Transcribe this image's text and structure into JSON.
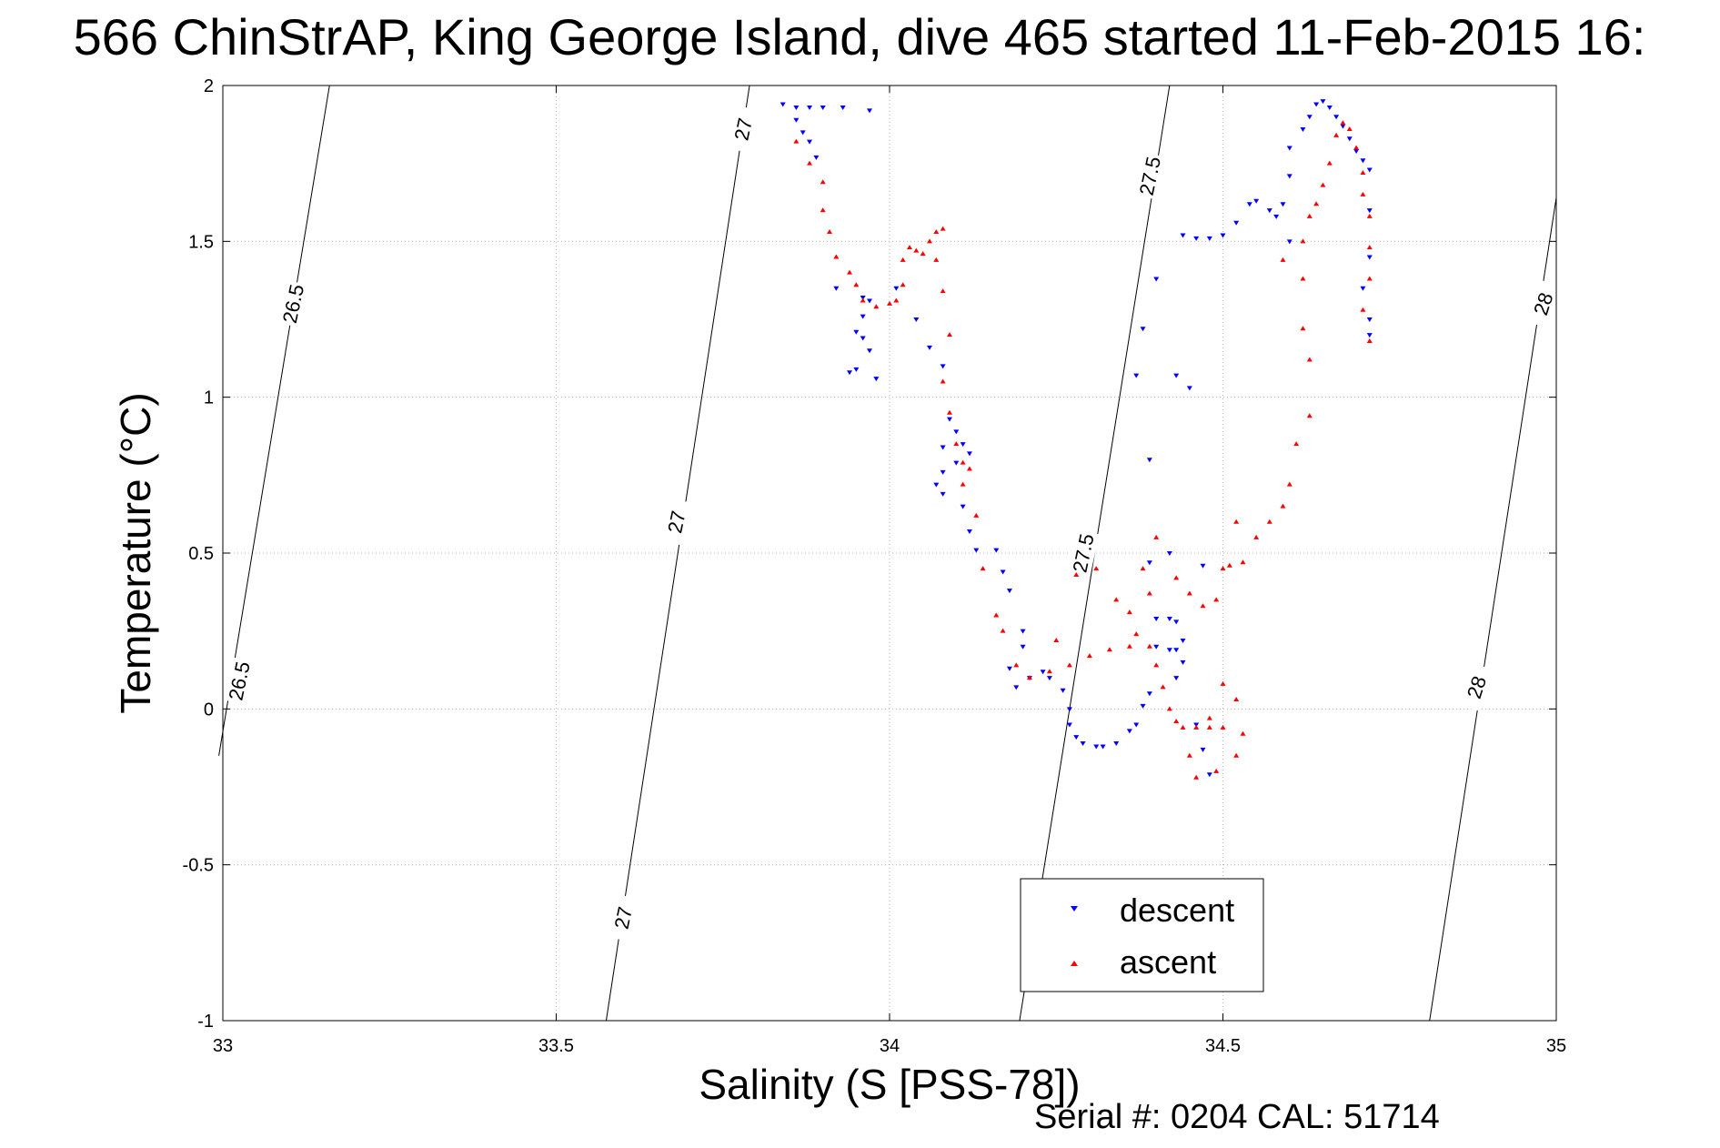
{
  "chart_data": {
    "type": "scatter",
    "title": "566 ChinStrAP, King George Island, dive 465 started 11-Feb-2015 16:",
    "xlabel": "Salinity (S [PSS-78])",
    "ylabel": "Temperature (°C)",
    "xlim": [
      33,
      35
    ],
    "ylim": [
      -1,
      2
    ],
    "x_ticks": [
      33,
      33.5,
      34,
      34.5,
      35
    ],
    "y_ticks": [
      -1,
      -0.5,
      0,
      0.5,
      1,
      1.5,
      2
    ],
    "x_tick_labels": [
      "33",
      "33.5",
      "34",
      "34.5",
      "35"
    ],
    "y_tick_labels": [
      "-1",
      "-0.5",
      "0",
      "0.5",
      "1",
      "1.5",
      "2"
    ],
    "grid": true,
    "legend_position": "bottom-center",
    "footer": "Serial #: 0204  CAL: 51714",
    "isopycnals": [
      {
        "label": "26.5",
        "points": [
          [
            33.16,
            2.0
          ],
          [
            32.994,
            -0.15
          ]
        ]
      },
      {
        "label": "27",
        "points": [
          [
            33.79,
            2.0
          ],
          [
            33.575,
            -1.0
          ]
        ]
      },
      {
        "label": "27.5",
        "points": [
          [
            34.42,
            2.0
          ],
          [
            34.195,
            -1.0
          ]
        ]
      },
      {
        "label": "28",
        "points": [
          [
            35.0,
            1.64
          ],
          [
            34.81,
            -1.0
          ]
        ]
      }
    ],
    "isopycnal_labels": [
      {
        "text": "26.5",
        "x": 33.105,
        "y": 1.3,
        "angle": -78
      },
      {
        "text": "26.5",
        "x": 33.024,
        "y": 0.09,
        "angle": -78
      },
      {
        "text": "27",
        "x": 33.78,
        "y": 1.86,
        "angle": -78
      },
      {
        "text": "27",
        "x": 33.68,
        "y": 0.6,
        "angle": -78
      },
      {
        "text": "27",
        "x": 33.6,
        "y": -0.67,
        "angle": -78
      },
      {
        "text": "27.5",
        "x": 34.39,
        "y": 1.71,
        "angle": -78
      },
      {
        "text": "27.5",
        "x": 34.29,
        "y": 0.5,
        "angle": -78
      },
      {
        "text": "28",
        "x": 34.98,
        "y": 1.3,
        "angle": -72
      },
      {
        "text": "28",
        "x": 34.88,
        "y": 0.07,
        "angle": -72
      }
    ],
    "series": [
      {
        "name": "descent",
        "color": "#0000ff",
        "marker": "triangle-down",
        "points": [
          [
            33.84,
            1.94
          ],
          [
            33.86,
            1.93
          ],
          [
            33.88,
            1.93
          ],
          [
            33.9,
            1.93
          ],
          [
            33.93,
            1.93
          ],
          [
            33.97,
            1.92
          ],
          [
            33.86,
            1.89
          ],
          [
            33.87,
            1.85
          ],
          [
            33.88,
            1.82
          ],
          [
            33.89,
            1.77
          ],
          [
            33.96,
            1.32
          ],
          [
            33.97,
            1.31
          ],
          [
            33.96,
            1.26
          ],
          [
            33.95,
            1.21
          ],
          [
            33.96,
            1.19
          ],
          [
            33.97,
            1.15
          ],
          [
            33.94,
            1.08
          ],
          [
            33.95,
            1.09
          ],
          [
            33.98,
            1.06
          ],
          [
            33.92,
            1.35
          ],
          [
            34.01,
            1.35
          ],
          [
            34.04,
            1.25
          ],
          [
            34.06,
            1.16
          ],
          [
            34.08,
            1.1
          ],
          [
            34.09,
            0.93
          ],
          [
            34.1,
            0.89
          ],
          [
            34.08,
            0.84
          ],
          [
            34.11,
            0.85
          ],
          [
            34.12,
            0.82
          ],
          [
            34.1,
            0.79
          ],
          [
            34.08,
            0.76
          ],
          [
            34.07,
            0.72
          ],
          [
            34.08,
            0.69
          ],
          [
            34.11,
            0.65
          ],
          [
            34.12,
            0.57
          ],
          [
            34.13,
            0.51
          ],
          [
            34.16,
            0.51
          ],
          [
            34.17,
            0.44
          ],
          [
            34.18,
            0.38
          ],
          [
            34.2,
            0.25
          ],
          [
            34.2,
            0.2
          ],
          [
            34.18,
            0.13
          ],
          [
            34.19,
            0.07
          ],
          [
            34.21,
            0.1
          ],
          [
            34.23,
            0.12
          ],
          [
            34.24,
            0.1
          ],
          [
            34.26,
            0.06
          ],
          [
            34.27,
            0.0
          ],
          [
            34.27,
            -0.05
          ],
          [
            34.28,
            -0.09
          ],
          [
            34.29,
            -0.11
          ],
          [
            34.31,
            -0.12
          ],
          [
            34.32,
            -0.12
          ],
          [
            34.34,
            -0.11
          ],
          [
            34.36,
            -0.07
          ],
          [
            34.37,
            -0.05
          ],
          [
            34.38,
            0.01
          ],
          [
            34.39,
            0.05
          ],
          [
            34.4,
            0.2
          ],
          [
            34.4,
            0.29
          ],
          [
            34.42,
            0.29
          ],
          [
            34.43,
            0.28
          ],
          [
            34.44,
            0.22
          ],
          [
            34.43,
            0.19
          ],
          [
            34.42,
            0.19
          ],
          [
            34.44,
            0.15
          ],
          [
            34.43,
            0.1
          ],
          [
            34.46,
            -0.05
          ],
          [
            34.47,
            -0.13
          ],
          [
            34.48,
            -0.21
          ],
          [
            34.42,
            0.5
          ],
          [
            34.47,
            0.46
          ],
          [
            34.39,
            0.47
          ],
          [
            34.37,
            1.07
          ],
          [
            34.43,
            1.07
          ],
          [
            34.45,
            1.03
          ],
          [
            34.39,
            0.8
          ],
          [
            34.38,
            1.22
          ],
          [
            34.4,
            1.38
          ],
          [
            34.44,
            1.52
          ],
          [
            34.46,
            1.51
          ],
          [
            34.48,
            1.51
          ],
          [
            34.5,
            1.52
          ],
          [
            34.52,
            1.56
          ],
          [
            34.54,
            1.62
          ],
          [
            34.55,
            1.63
          ],
          [
            34.57,
            1.6
          ],
          [
            34.58,
            1.58
          ],
          [
            34.6,
            1.5
          ],
          [
            34.59,
            1.62
          ],
          [
            34.6,
            1.71
          ],
          [
            34.6,
            1.8
          ],
          [
            34.62,
            1.86
          ],
          [
            34.63,
            1.9
          ],
          [
            34.64,
            1.94
          ],
          [
            34.65,
            1.95
          ],
          [
            34.66,
            1.93
          ],
          [
            34.67,
            1.9
          ],
          [
            34.68,
            1.87
          ],
          [
            34.69,
            1.83
          ],
          [
            34.7,
            1.79
          ],
          [
            34.71,
            1.76
          ],
          [
            34.72,
            1.73
          ],
          [
            34.72,
            1.6
          ],
          [
            34.72,
            1.45
          ],
          [
            34.71,
            1.35
          ],
          [
            34.72,
            1.25
          ],
          [
            34.72,
            1.2
          ]
        ]
      },
      {
        "name": "ascent",
        "color": "#ff0000",
        "marker": "triangle-up",
        "points": [
          [
            33.86,
            1.82
          ],
          [
            33.88,
            1.75
          ],
          [
            33.9,
            1.69
          ],
          [
            33.9,
            1.6
          ],
          [
            33.91,
            1.53
          ],
          [
            33.92,
            1.45
          ],
          [
            33.94,
            1.4
          ],
          [
            33.95,
            1.36
          ],
          [
            33.96,
            1.31
          ],
          [
            33.98,
            1.29
          ],
          [
            34.0,
            1.3
          ],
          [
            34.01,
            1.31
          ],
          [
            34.02,
            1.36
          ],
          [
            34.02,
            1.44
          ],
          [
            34.03,
            1.48
          ],
          [
            34.04,
            1.47
          ],
          [
            34.05,
            1.46
          ],
          [
            34.06,
            1.5
          ],
          [
            34.07,
            1.53
          ],
          [
            34.08,
            1.54
          ],
          [
            34.07,
            1.44
          ],
          [
            34.08,
            1.34
          ],
          [
            34.09,
            1.2
          ],
          [
            34.08,
            1.05
          ],
          [
            34.09,
            0.95
          ],
          [
            34.1,
            0.85
          ],
          [
            34.11,
            0.79
          ],
          [
            34.12,
            0.77
          ],
          [
            34.11,
            0.72
          ],
          [
            34.13,
            0.62
          ],
          [
            34.14,
            0.45
          ],
          [
            34.16,
            0.3
          ],
          [
            34.17,
            0.25
          ],
          [
            34.19,
            0.14
          ],
          [
            34.21,
            0.1
          ],
          [
            34.24,
            0.12
          ],
          [
            34.27,
            0.14
          ],
          [
            34.3,
            0.17
          ],
          [
            34.33,
            0.19
          ],
          [
            34.36,
            0.2
          ],
          [
            34.39,
            0.2
          ],
          [
            34.4,
            0.14
          ],
          [
            34.41,
            0.07
          ],
          [
            34.42,
            0.0
          ],
          [
            34.43,
            -0.04
          ],
          [
            34.44,
            -0.06
          ],
          [
            34.46,
            -0.06
          ],
          [
            34.48,
            -0.06
          ],
          [
            34.5,
            -0.06
          ],
          [
            34.49,
            -0.2
          ],
          [
            34.46,
            -0.22
          ],
          [
            34.52,
            -0.15
          ],
          [
            34.34,
            0.35
          ],
          [
            34.36,
            0.31
          ],
          [
            34.38,
            0.45
          ],
          [
            34.39,
            0.37
          ],
          [
            34.37,
            0.24
          ],
          [
            34.4,
            0.55
          ],
          [
            34.43,
            0.42
          ],
          [
            34.45,
            0.37
          ],
          [
            34.47,
            0.33
          ],
          [
            34.49,
            0.35
          ],
          [
            34.5,
            0.45
          ],
          [
            34.51,
            0.46
          ],
          [
            34.53,
            0.47
          ],
          [
            34.52,
            0.6
          ],
          [
            34.55,
            0.55
          ],
          [
            34.57,
            0.6
          ],
          [
            34.59,
            0.65
          ],
          [
            34.6,
            0.72
          ],
          [
            34.61,
            0.85
          ],
          [
            34.63,
            0.94
          ],
          [
            34.63,
            1.12
          ],
          [
            34.62,
            1.22
          ],
          [
            34.62,
            1.38
          ],
          [
            34.59,
            1.44
          ],
          [
            34.62,
            1.5
          ],
          [
            34.63,
            1.58
          ],
          [
            34.64,
            1.62
          ],
          [
            34.65,
            1.68
          ],
          [
            34.66,
            1.75
          ],
          [
            34.67,
            1.84
          ],
          [
            34.68,
            1.88
          ],
          [
            34.69,
            1.86
          ],
          [
            34.7,
            1.8
          ],
          [
            34.71,
            1.72
          ],
          [
            34.71,
            1.65
          ],
          [
            34.72,
            1.58
          ],
          [
            34.72,
            1.48
          ],
          [
            34.72,
            1.38
          ],
          [
            34.71,
            1.28
          ],
          [
            34.72,
            1.18
          ],
          [
            34.5,
            0.08
          ],
          [
            34.52,
            0.03
          ],
          [
            34.53,
            -0.08
          ],
          [
            34.28,
            0.43
          ],
          [
            34.31,
            0.45
          ],
          [
            34.25,
            0.22
          ],
          [
            34.45,
            -0.15
          ],
          [
            34.48,
            -0.03
          ]
        ]
      }
    ]
  }
}
